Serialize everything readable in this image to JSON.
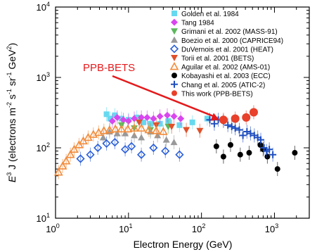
{
  "chart_data": {
    "type": "scatter",
    "title": "",
    "xlabel": "Electron Energy (GeV)",
    "ylabel_parts": [
      "E",
      "3",
      " J (electrons m",
      "-2",
      " s",
      "-1",
      " sr",
      "-1",
      " GeV",
      "2",
      ")"
    ],
    "xscale": "log",
    "yscale": "log",
    "xlim": [
      1,
      3000
    ],
    "ylim": [
      10,
      10000
    ],
    "x_ticks": [
      "10",
      "10",
      "10",
      "10"
    ],
    "x_tick_exponents": [
      "0",
      "1",
      "2",
      "3"
    ],
    "x_tick_values": [
      1,
      10,
      100,
      1000
    ],
    "y_ticks": [
      "10",
      "10",
      "10",
      "10"
    ],
    "y_tick_exponents": [
      "1",
      "2",
      "3",
      "4"
    ],
    "y_tick_values": [
      10,
      100,
      1000,
      10000
    ],
    "legend_position": "top-right",
    "annotation": {
      "text": "PPB-BETS",
      "color": "#e41a1c",
      "arrow_to": [
        175,
        250
      ]
    },
    "series": [
      {
        "name": "Golden et al. 1984",
        "color": "#66d9ef",
        "marker": "square",
        "points": [
          [
            5,
            300
          ],
          [
            5.6,
            260
          ],
          [
            6.5,
            290
          ],
          [
            8,
            260
          ],
          [
            10,
            250
          ],
          [
            13,
            270
          ],
          [
            16,
            230
          ],
          [
            20,
            220
          ],
          [
            27,
            220
          ],
          [
            35,
            240
          ],
          [
            50,
            210
          ],
          [
            75,
            230
          ],
          [
            120,
            260
          ]
        ]
      },
      {
        "name": "Tang 1984",
        "color": "#d946ef",
        "marker": "diamond",
        "points": [
          [
            6,
            240
          ],
          [
            7,
            270
          ],
          [
            8.5,
            250
          ],
          [
            10,
            240
          ],
          [
            12,
            260
          ],
          [
            15,
            270
          ],
          [
            18,
            270
          ],
          [
            22,
            260
          ],
          [
            27,
            280
          ],
          [
            34,
            290
          ],
          [
            42,
            280
          ],
          [
            52,
            260
          ]
        ]
      },
      {
        "name": "Grimani et al. 2002 (MASS-91)",
        "color": "#5cb85c",
        "marker": "triangle-down",
        "points": [
          [
            8,
            210
          ],
          [
            12,
            190
          ],
          [
            20,
            180
          ],
          [
            35,
            200
          ]
        ]
      },
      {
        "name": "Boezio et al. 2000 (CAPRICE94)",
        "color": "#999999",
        "marker": "triangle",
        "points": [
          [
            4.5,
            140
          ],
          [
            5.5,
            170
          ],
          [
            7,
            160
          ],
          [
            9,
            160
          ],
          [
            12,
            150
          ],
          [
            15,
            140
          ],
          [
            20,
            170
          ],
          [
            25,
            150
          ],
          [
            33,
            130
          ],
          [
            42,
            120
          ]
        ]
      },
      {
        "name": "DuVernois et al. 2001 (HEAT)",
        "color": "#2a5fd8",
        "marker": "diamond-open",
        "points": [
          [
            2.2,
            70
          ],
          [
            3,
            80
          ],
          [
            3.8,
            100
          ],
          [
            5,
            115
          ],
          [
            6.5,
            120
          ],
          [
            9,
            95
          ],
          [
            11,
            105
          ],
          [
            15,
            80
          ],
          [
            22,
            100
          ],
          [
            32,
            90
          ],
          [
            50,
            80
          ]
        ]
      },
      {
        "name": "Torii et al. 2001 (BETS)",
        "color": "#e0502a",
        "marker": "triangle-down",
        "points": [
          [
            14,
            230
          ],
          [
            24,
            210
          ],
          [
            39,
            200
          ],
          [
            62,
            180
          ],
          [
            95,
            175
          ]
        ]
      },
      {
        "name": "Aguilar et al. 2002 (AMS-01)",
        "color": "#f28c3c",
        "marker": "triangle-open",
        "points": [
          [
            1.1,
            45
          ],
          [
            1.25,
            55
          ],
          [
            1.4,
            65
          ],
          [
            1.6,
            80
          ],
          [
            1.8,
            95
          ],
          [
            2.1,
            110
          ],
          [
            2.4,
            125
          ],
          [
            2.8,
            140
          ],
          [
            3.3,
            155
          ],
          [
            3.9,
            165
          ],
          [
            4.6,
            175
          ],
          [
            5.5,
            180
          ],
          [
            6.6,
            185
          ],
          [
            8,
            185
          ],
          [
            9.8,
            185
          ],
          [
            12,
            190
          ],
          [
            15,
            190
          ],
          [
            19,
            180
          ],
          [
            24,
            175
          ],
          [
            30,
            170
          ]
        ]
      },
      {
        "name": "Kobayashi et al. 2003 (ECC)",
        "color": "#000000",
        "marker": "circle",
        "points": [
          [
            160,
            105
          ],
          [
            200,
            75
          ],
          [
            250,
            110
          ],
          [
            340,
            80
          ],
          [
            450,
            85
          ],
          [
            640,
            110
          ],
          [
            700,
            95
          ],
          [
            800,
            75
          ],
          [
            1100,
            50
          ],
          [
            1900,
            85
          ]
        ]
      },
      {
        "name": "Chang et al. 2005 (ATIC-2)",
        "color": "#1f4fbf",
        "marker": "plus",
        "points": [
          [
            130,
            250
          ],
          [
            150,
            220
          ],
          [
            170,
            250
          ],
          [
            200,
            240
          ],
          [
            230,
            210
          ],
          [
            260,
            200
          ],
          [
            290,
            190
          ],
          [
            330,
            180
          ],
          [
            370,
            150
          ],
          [
            420,
            170
          ],
          [
            470,
            160
          ],
          [
            530,
            150
          ],
          [
            590,
            140
          ],
          [
            650,
            130
          ],
          [
            720,
            100
          ],
          [
            780,
            90
          ],
          [
            850,
            95
          ],
          [
            950,
            80
          ]
        ]
      },
      {
        "name": "This work (PPB-BETS)",
        "color": "#e8402a",
        "marker": "circle-big",
        "points": [
          [
            200,
            250
          ],
          [
            290,
            260
          ],
          [
            410,
            270
          ],
          [
            520,
            320
          ]
        ]
      }
    ]
  }
}
